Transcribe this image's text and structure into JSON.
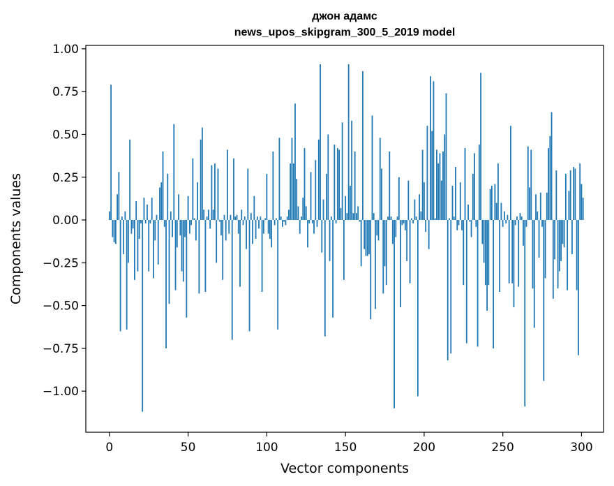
{
  "chart_data": {
    "type": "bar",
    "title_line1": "джон адамс",
    "title_line2": "news_upos_skipgram_300_5_2019 model",
    "xlabel": "Vector components",
    "ylabel": "Components values",
    "xlim": [
      -15,
      314
    ],
    "ylim": [
      -1.24,
      1.02
    ],
    "xticks": [
      0,
      50,
      100,
      150,
      200,
      250,
      300
    ],
    "xtick_labels": [
      "0",
      "50",
      "100",
      "150",
      "200",
      "250",
      "300"
    ],
    "yticks": [
      1.0,
      0.75,
      0.5,
      0.25,
      0.0,
      -0.25,
      -0.5,
      -0.75,
      -1.0
    ],
    "ytick_labels": [
      "1.00",
      "0.75",
      "0.50",
      "0.25",
      "0.00",
      "−0.25",
      "−0.50",
      "−0.75",
      "−1.00"
    ],
    "bar_color": "#1f77b4",
    "values": [
      0.05,
      0.79,
      -0.1,
      -0.13,
      -0.14,
      0.15,
      0.28,
      -0.65,
      0.02,
      -0.2,
      0.05,
      -0.64,
      -0.25,
      0.47,
      -0.08,
      -0.05,
      -0.35,
      0.11,
      -0.3,
      -0.11,
      -0.02,
      -1.12,
      0.13,
      -0.02,
      0.09,
      -0.3,
      -0.02,
      0.13,
      -0.34,
      -0.12,
      0.03,
      -0.26,
      0.19,
      0.22,
      0.4,
      -0.04,
      -0.75,
      0.27,
      -0.49,
      0.05,
      -0.1,
      0.56,
      -0.41,
      -0.16,
      0.15,
      -0.09,
      -0.3,
      -0.36,
      -0.1,
      -0.57,
      0.14,
      -0.08,
      -0.03,
      0.36,
      0.01,
      -0.12,
      0.22,
      -0.43,
      0.47,
      0.54,
      0.06,
      -0.42,
      0.02,
      0.06,
      -0.05,
      0.32,
      0.06,
      0.33,
      -0.25,
      0.3,
      -0.01,
      -0.09,
      -0.35,
      0.03,
      -0.12,
      0.41,
      -0.08,
      0.03,
      -0.7,
      0.36,
      0.02,
      0.03,
      -0.08,
      -0.39,
      0.06,
      -0.03,
      0.02,
      -0.17,
      0.3,
      -0.65,
      0.04,
      -0.14,
      0.14,
      -0.11,
      0.02,
      -0.05,
      0.02,
      -0.42,
      -0.08,
      0.01,
      0.27,
      -0.08,
      -0.11,
      -0.16,
      0.4,
      -0.03,
      0.01,
      -0.64,
      0.48,
      0.02,
      -0.04,
      -0.01,
      -0.03,
      0.02,
      0.06,
      0.33,
      0.48,
      0.33,
      0.68,
      0.24,
      0.08,
      -0.08,
      0.02,
      0.13,
      0.42,
      0.08,
      -0.16,
      -0.02,
      0.28,
      -0.02,
      -0.08,
      0.35,
      -0.04,
      0.47,
      0.91,
      -0.19,
      0.12,
      -0.68,
      0.27,
      0.5,
      -0.24,
      0.02,
      -0.57,
      0.44,
      -0.02,
      0.42,
      0.41,
      0.07,
      0.57,
      -0.35,
      0.14,
      0.04,
      0.91,
      0.2,
      0.58,
      0.04,
      0.4,
      0.04,
      0.08,
      -0.01,
      -0.27,
      0.87,
      -0.17,
      -0.21,
      -0.21,
      -0.2,
      -0.58,
      0.61,
      0.04,
      -0.52,
      -0.09,
      -0.12,
      0.48,
      0.3,
      -0.43,
      -0.27,
      -0.38,
      0.02,
      0.4,
      0.02,
      -0.14,
      -1.1,
      -0.1,
      0.02,
      0.25,
      -0.51,
      -0.03,
      -0.02,
      -0.06,
      -0.24,
      0.23,
      -0.37,
      0.01,
      -0.02,
      0.12,
      0.02,
      -1.03,
      0.15,
      0.05,
      0.41,
      0.22,
      -0.07,
      0.55,
      -0.17,
      0.84,
      0.52,
      0.81,
      0.01,
      0.41,
      0.33,
      0.39,
      0.23,
      0.4,
      0.5,
      0.74,
      -0.82,
      0.01,
      -0.78,
      0.2,
      0.02,
      0.31,
      -0.06,
      -0.03,
      0.22,
      -0.06,
      -0.38,
      0.42,
      -0.72,
      0.09,
      -0.01,
      -0.1,
      0.27,
      0.39,
      -0.04,
      -0.74,
      0.44,
      0.86,
      -0.14,
      -0.25,
      -0.38,
      -0.53,
      -0.38,
      0.18,
      0.2,
      -0.75,
      0.21,
      0.1,
      0.33,
      -0.42,
      0.1,
      -0.04,
      0.05,
      -0.02,
      0.03,
      -0.37,
      0.55,
      -0.37,
      -0.51,
      -0.03,
      0.02,
      -0.39,
      0.04,
      0.02,
      -0.15,
      -1.09,
      -0.04,
      0.43,
      0.19,
      0.41,
      -0.4,
      -0.63,
      0.15,
      0.05,
      -0.22,
      0.16,
      -0.04,
      -0.94,
      -0.34,
      0.16,
      0.42,
      0.49,
      0.63,
      -0.46,
      -0.23,
      0.29,
      -0.4,
      -0.3,
      -0.24,
      -0.14,
      -0.16,
      0.27,
      -0.41,
      0.17,
      0.29,
      -0.2,
      0.31,
      0.3,
      -0.41,
      -0.79,
      0.33,
      0.21,
      0.13
    ]
  }
}
